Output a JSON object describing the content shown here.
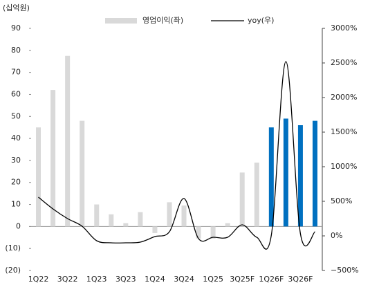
{
  "chart_data": {
    "type": "combo",
    "y_label": "(십억원)",
    "categories": [
      "1Q22",
      null,
      "3Q22",
      null,
      "1Q23",
      null,
      "3Q23",
      null,
      "1Q24",
      null,
      "3Q24",
      null,
      "1Q25",
      null,
      "3Q25F",
      null,
      "1Q26F",
      null,
      "3Q26F",
      null
    ],
    "series": [
      {
        "name": "영업이익(좌)",
        "type": "bar",
        "axis": "y",
        "colors": [
          "#d9d9d9",
          "#d9d9d9",
          "#d9d9d9",
          "#d9d9d9",
          "#d9d9d9",
          "#d9d9d9",
          "#d9d9d9",
          "#d9d9d9",
          "#d9d9d9",
          "#d9d9d9",
          "#d9d9d9",
          "#d9d9d9",
          "#d9d9d9",
          "#d9d9d9",
          "#d9d9d9",
          "#d9d9d9",
          "#0070c0",
          "#0070c0",
          "#0070c0",
          "#0070c0"
        ],
        "values": [
          45,
          62,
          77.5,
          48,
          10,
          5.5,
          1.5,
          6.5,
          -3,
          11,
          9.5,
          -5.5,
          -5.5,
          1.5,
          24.5,
          29,
          45,
          49,
          46,
          48
        ]
      },
      {
        "name": "yoy(우)",
        "type": "line",
        "axis": "y2",
        "color": "#000000",
        "values": [
          560,
          390,
          250,
          140,
          -70,
          -100,
          -100,
          -90,
          -10,
          60,
          540,
          -40,
          -20,
          -20,
          160,
          -20,
          10,
          2520,
          30,
          60
        ]
      }
    ],
    "ylim": [
      -20,
      90
    ],
    "yticks": [
      90,
      80,
      70,
      60,
      50,
      40,
      30,
      20,
      10,
      0,
      {
        "value": -10,
        "label": "(10)"
      },
      {
        "value": -20,
        "label": "(20)"
      }
    ],
    "y2lim": [
      -500,
      3000
    ],
    "y2ticks": [
      {
        "value": 3000,
        "label": "3000%"
      },
      {
        "value": 2500,
        "label": "2500%"
      },
      {
        "value": 2000,
        "label": "2000%"
      },
      {
        "value": 1500,
        "label": "1500%"
      },
      {
        "value": 1000,
        "label": "1000%"
      },
      {
        "value": 500,
        "label": "500%"
      },
      {
        "value": 0,
        "label": "0%"
      },
      {
        "value": -500,
        "label": "−500%"
      }
    ],
    "legend": "top"
  }
}
